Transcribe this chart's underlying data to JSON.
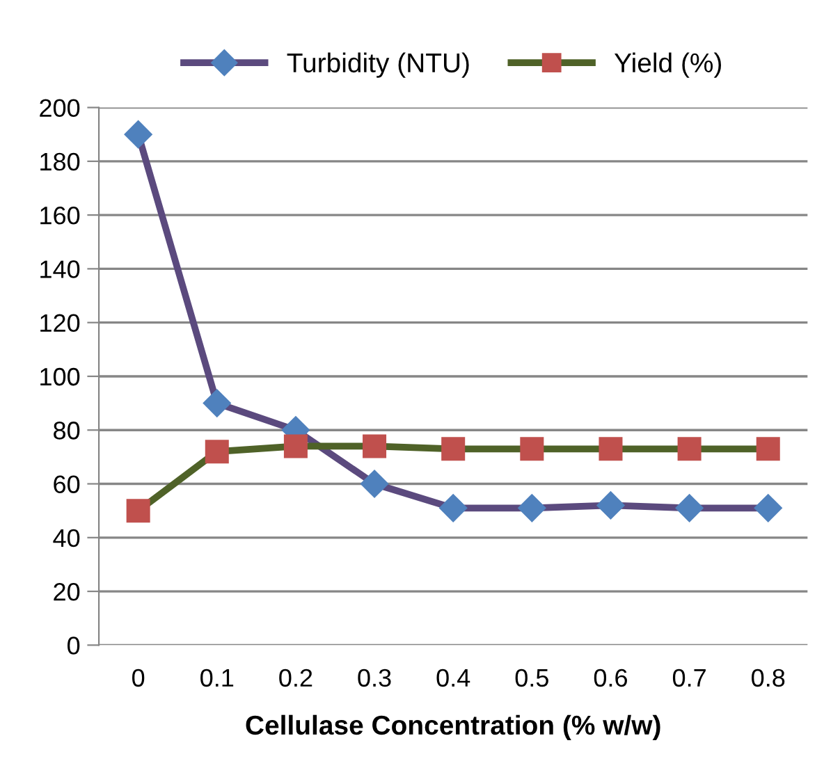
{
  "chart_data": {
    "type": "line",
    "xlabel": "Cellulase Concentration (% w/w)",
    "categories": [
      "0",
      "0.1",
      "0.2",
      "0.3",
      "0.4",
      "0.5",
      "0.6",
      "0.7",
      "0.8"
    ],
    "series": [
      {
        "name": "Turbidity (NTU)",
        "color": "#5b4a7e",
        "marker": "diamond",
        "colors": [
          "#4f81bd",
          "#4f81bd",
          "#4f81bd",
          "#4f81bd",
          "#4f81bd",
          "#4f81bd",
          "#4f81bd",
          "#4f81bd",
          "#4f81bd"
        ],
        "values": [
          190,
          90,
          80,
          60,
          51,
          51,
          52,
          51,
          51
        ]
      },
      {
        "name": "Yield (%)",
        "color": "#4f6228",
        "marker": "square",
        "colors": [
          "#c0504d",
          "#c0504d",
          "#c0504d",
          "#c0504d",
          "#c0504d",
          "#c0504d",
          "#c0504d",
          "#c0504d",
          "#c0504d"
        ],
        "values": [
          50,
          72,
          74,
          74,
          73,
          73,
          73,
          73,
          73
        ]
      }
    ],
    "ylim": [
      0,
      200
    ],
    "yticks": [
      0,
      20,
      40,
      60,
      80,
      100,
      120,
      140,
      160,
      180,
      200
    ],
    "grid": "y",
    "legend": "top",
    "line_style": "solid"
  }
}
